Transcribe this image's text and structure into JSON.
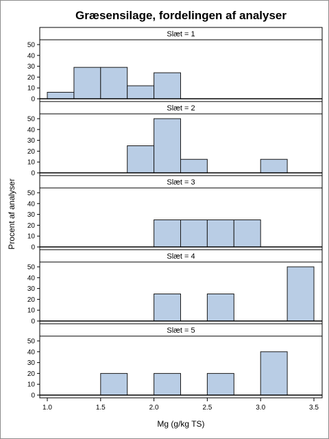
{
  "chart_data": {
    "type": "bar",
    "title": "Græsensilage, fordelingen af analyser",
    "xlabel": "Mg (g/kg TS)",
    "ylabel": "Procent af analyser",
    "xlim": [
      1.0,
      3.5
    ],
    "ylim": [
      0,
      55
    ],
    "xticks": [
      "1.0",
      "1.5",
      "2.0",
      "2.5",
      "3.0",
      "3.5"
    ],
    "yticks": [
      "0",
      "10",
      "20",
      "30",
      "40",
      "50"
    ],
    "bar_fill": "#b9cde5",
    "bar_stroke": "#1a1a1a",
    "panels": [
      {
        "label": "Slæt = 1",
        "bins": [
          {
            "x0": 1.0,
            "x1": 1.25,
            "value": 6
          },
          {
            "x0": 1.25,
            "x1": 1.5,
            "value": 29
          },
          {
            "x0": 1.5,
            "x1": 1.75,
            "value": 29
          },
          {
            "x0": 1.75,
            "x1": 2.0,
            "value": 12
          },
          {
            "x0": 2.0,
            "x1": 2.25,
            "value": 24
          }
        ]
      },
      {
        "label": "Slæt = 2",
        "bins": [
          {
            "x0": 1.75,
            "x1": 2.0,
            "value": 25
          },
          {
            "x0": 2.0,
            "x1": 2.25,
            "value": 50
          },
          {
            "x0": 2.25,
            "x1": 2.5,
            "value": 12.5
          },
          {
            "x0": 3.0,
            "x1": 3.25,
            "value": 12.5
          }
        ]
      },
      {
        "label": "Slæt = 3",
        "bins": [
          {
            "x0": 2.0,
            "x1": 2.25,
            "value": 25
          },
          {
            "x0": 2.25,
            "x1": 2.5,
            "value": 25
          },
          {
            "x0": 2.5,
            "x1": 2.75,
            "value": 25
          },
          {
            "x0": 2.75,
            "x1": 3.0,
            "value": 25
          }
        ]
      },
      {
        "label": "Slæt = 4",
        "bins": [
          {
            "x0": 2.0,
            "x1": 2.25,
            "value": 25
          },
          {
            "x0": 2.5,
            "x1": 2.75,
            "value": 25
          },
          {
            "x0": 3.25,
            "x1": 3.5,
            "value": 50
          }
        ]
      },
      {
        "label": "Slæt = 5",
        "bins": [
          {
            "x0": 1.5,
            "x1": 1.75,
            "value": 20
          },
          {
            "x0": 2.0,
            "x1": 2.25,
            "value": 20
          },
          {
            "x0": 2.5,
            "x1": 2.75,
            "value": 20
          },
          {
            "x0": 3.0,
            "x1": 3.25,
            "value": 40
          }
        ]
      }
    ]
  }
}
